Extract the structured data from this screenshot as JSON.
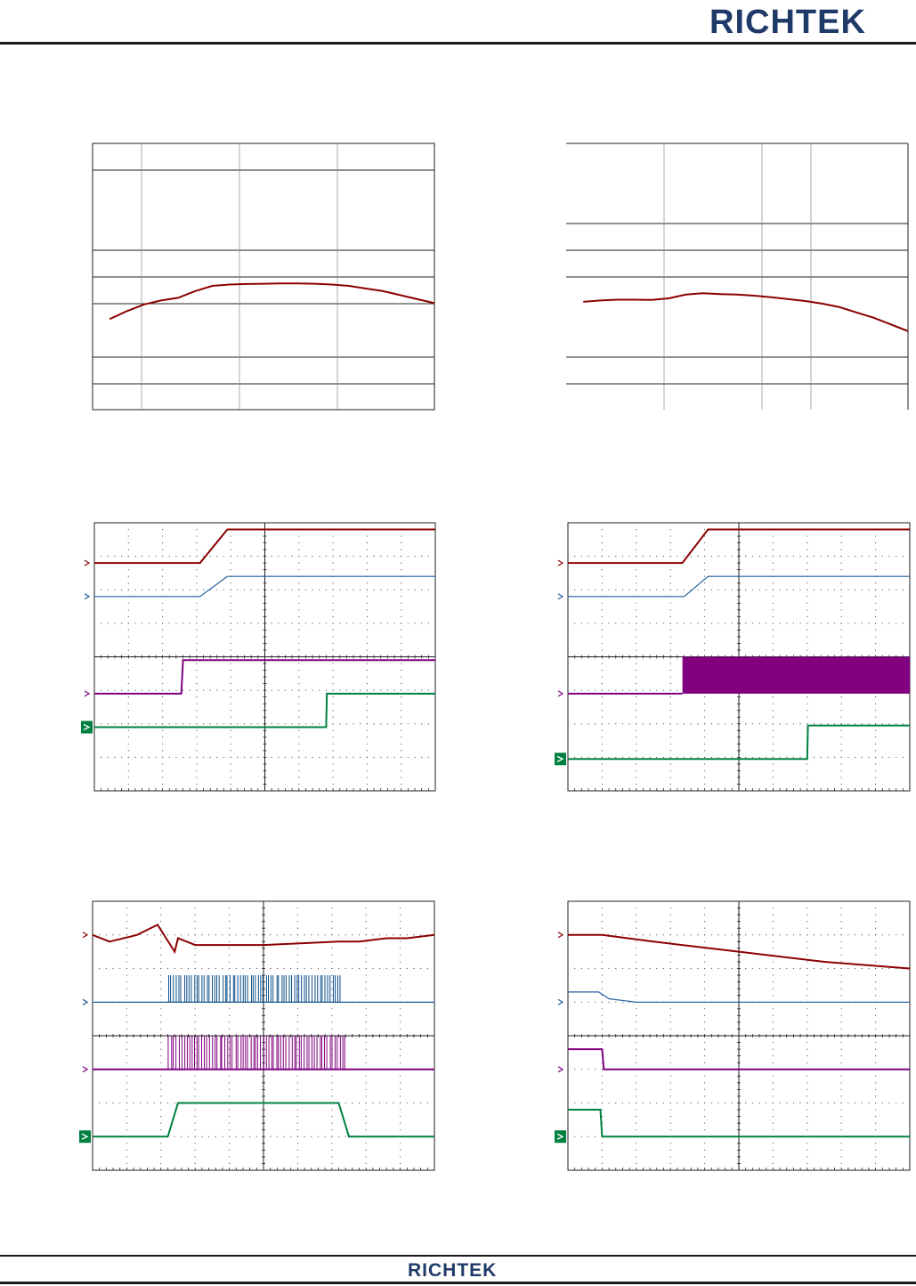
{
  "header": {
    "logo_text": "RICHTEK"
  },
  "footer": {
    "logo_text": "RICHTEK"
  },
  "colors": {
    "dark_red": "#8b0000",
    "blue": "#1f5fa0",
    "dark_blue": "#0b4f8a",
    "purple": "#800080",
    "green": "#008040",
    "grid": "#222222"
  },
  "chart_data": [
    {
      "type": "line",
      "grid": true,
      "title": "",
      "xlabel": "",
      "ylabel": "",
      "x": [
        0.05,
        0.1,
        0.15,
        0.2,
        0.25,
        0.3,
        0.35,
        0.4,
        0.45,
        0.5,
        0.55,
        0.6,
        0.65,
        0.7,
        0.75,
        0.8,
        0.85,
        0.9,
        0.95,
        1.0
      ],
      "series": [
        {
          "values": [
            0.34,
            0.37,
            0.395,
            0.41,
            0.42,
            0.445,
            0.465,
            0.47,
            0.472,
            0.473,
            0.474,
            0.474,
            0.473,
            0.47,
            0.465,
            0.455,
            0.445,
            0.43,
            0.415,
            0.4
          ]
        }
      ]
    },
    {
      "type": "line",
      "grid": true,
      "title": "",
      "xlabel": "",
      "ylabel": "",
      "x": [
        0.05,
        0.1,
        0.15,
        0.2,
        0.25,
        0.3,
        0.35,
        0.4,
        0.45,
        0.5,
        0.55,
        0.6,
        0.65,
        0.7,
        0.75,
        0.8,
        0.85,
        0.9,
        0.95,
        1.0
      ],
      "series": [
        {
          "values": [
            0.405,
            0.41,
            0.413,
            0.413,
            0.412,
            0.418,
            0.432,
            0.437,
            0.434,
            0.432,
            0.428,
            0.422,
            0.415,
            0.408,
            0.398,
            0.385,
            0.365,
            0.345,
            0.32,
            0.295
          ]
        }
      ]
    },
    {
      "type": "line",
      "grid": true,
      "title": "",
      "xlabel": "",
      "ylabel": "",
      "x_divisions": 10,
      "y_divisions": 8,
      "series": [
        {
          "marker_level": 6.8,
          "points": [
            [
              0,
              6.8
            ],
            [
              3.1,
              6.8
            ],
            [
              3.9,
              7.8
            ],
            [
              10,
              7.8
            ]
          ]
        },
        {
          "marker_level": 5.8,
          "points": [
            [
              0,
              5.8
            ],
            [
              3.1,
              5.8
            ],
            [
              3.9,
              6.4
            ],
            [
              10,
              6.4
            ]
          ]
        },
        {
          "marker_level": 2.9,
          "points": [
            [
              0,
              2.9
            ],
            [
              2.55,
              2.9
            ],
            [
              2.6,
              3.9
            ],
            [
              10,
              3.9
            ]
          ]
        },
        {
          "marker_level": 1.9,
          "points": [
            [
              0,
              1.9
            ],
            [
              6.8,
              1.9
            ],
            [
              6.82,
              2.9
            ],
            [
              10,
              2.9
            ]
          ]
        }
      ]
    },
    {
      "type": "line",
      "grid": true,
      "title": "",
      "xlabel": "",
      "ylabel": "",
      "x_divisions": 10,
      "y_divisions": 8,
      "series": [
        {
          "marker_level": 6.8,
          "points": [
            [
              0,
              6.8
            ],
            [
              3.35,
              6.8
            ],
            [
              4.1,
              7.8
            ],
            [
              10,
              7.8
            ]
          ]
        },
        {
          "marker_level": 5.8,
          "points": [
            [
              0,
              5.8
            ],
            [
              3.4,
              5.8
            ],
            [
              4.1,
              6.4
            ],
            [
              10,
              6.4
            ]
          ]
        },
        {
          "marker_level": 2.9,
          "burst_from": 3.35,
          "burst_high": 4.0,
          "points": [
            [
              0,
              2.9
            ],
            [
              3.35,
              2.9
            ]
          ]
        },
        {
          "marker_level": 0.95,
          "points": [
            [
              0,
              0.95
            ],
            [
              7.0,
              0.95
            ],
            [
              7.02,
              1.95
            ],
            [
              10,
              1.95
            ]
          ]
        }
      ]
    },
    {
      "type": "line",
      "grid": true,
      "title": "",
      "xlabel": "",
      "ylabel": "",
      "x_divisions": 10,
      "y_divisions": 8,
      "series": [
        {
          "marker_level": 7.0,
          "points": [
            [
              0,
              7.0
            ],
            [
              0.5,
              6.8
            ],
            [
              1.3,
              7.0
            ],
            [
              1.9,
              7.3
            ],
            [
              2.4,
              6.5
            ],
            [
              2.5,
              6.9
            ],
            [
              3.0,
              6.7
            ],
            [
              5.0,
              6.7
            ],
            [
              7.2,
              6.8
            ],
            [
              7.8,
              6.8
            ],
            [
              8.6,
              6.9
            ],
            [
              9.2,
              6.9
            ],
            [
              10,
              7.0
            ]
          ]
        },
        {
          "marker_level": 5.0,
          "spike_ranges": [
            [
              2.2,
              7.3
            ]
          ],
          "spike_high": 5.8,
          "points": [
            [
              0,
              5.0
            ],
            [
              10,
              5.0
            ]
          ]
        },
        {
          "marker_level": 3.0,
          "spike_ranges": [
            [
              2.2,
              7.4
            ]
          ],
          "spike_high": 4.0,
          "points": [
            [
              0,
              3.0
            ],
            [
              10,
              3.0
            ]
          ]
        },
        {
          "marker_level": 1.0,
          "points": [
            [
              0,
              1.0
            ],
            [
              2.2,
              1.0
            ],
            [
              2.5,
              2.0
            ],
            [
              7.2,
              2.0
            ],
            [
              7.5,
              1.0
            ],
            [
              10,
              1.0
            ]
          ]
        }
      ]
    },
    {
      "type": "line",
      "grid": true,
      "title": "",
      "xlabel": "",
      "ylabel": "",
      "x_divisions": 10,
      "y_divisions": 8,
      "series": [
        {
          "marker_level": 7.0,
          "points": [
            [
              0,
              7.0
            ],
            [
              1.0,
              7.0
            ],
            [
              2.5,
              6.8
            ],
            [
              5.0,
              6.5
            ],
            [
              7.5,
              6.2
            ],
            [
              10,
              6.0
            ]
          ]
        },
        {
          "marker_level": 5.0,
          "points": [
            [
              0,
              5.3
            ],
            [
              0.9,
              5.3
            ],
            [
              1.2,
              5.1
            ],
            [
              2.0,
              5.0
            ],
            [
              10,
              5.0
            ]
          ]
        },
        {
          "marker_level": 3.0,
          "points": [
            [
              0,
              3.6
            ],
            [
              1.0,
              3.6
            ],
            [
              1.05,
              3.0
            ],
            [
              10,
              3.0
            ]
          ]
        },
        {
          "marker_level": 1.0,
          "points": [
            [
              0,
              1.8
            ],
            [
              0.95,
              1.8
            ],
            [
              1.0,
              1.0
            ],
            [
              10,
              1.0
            ]
          ]
        }
      ]
    }
  ]
}
